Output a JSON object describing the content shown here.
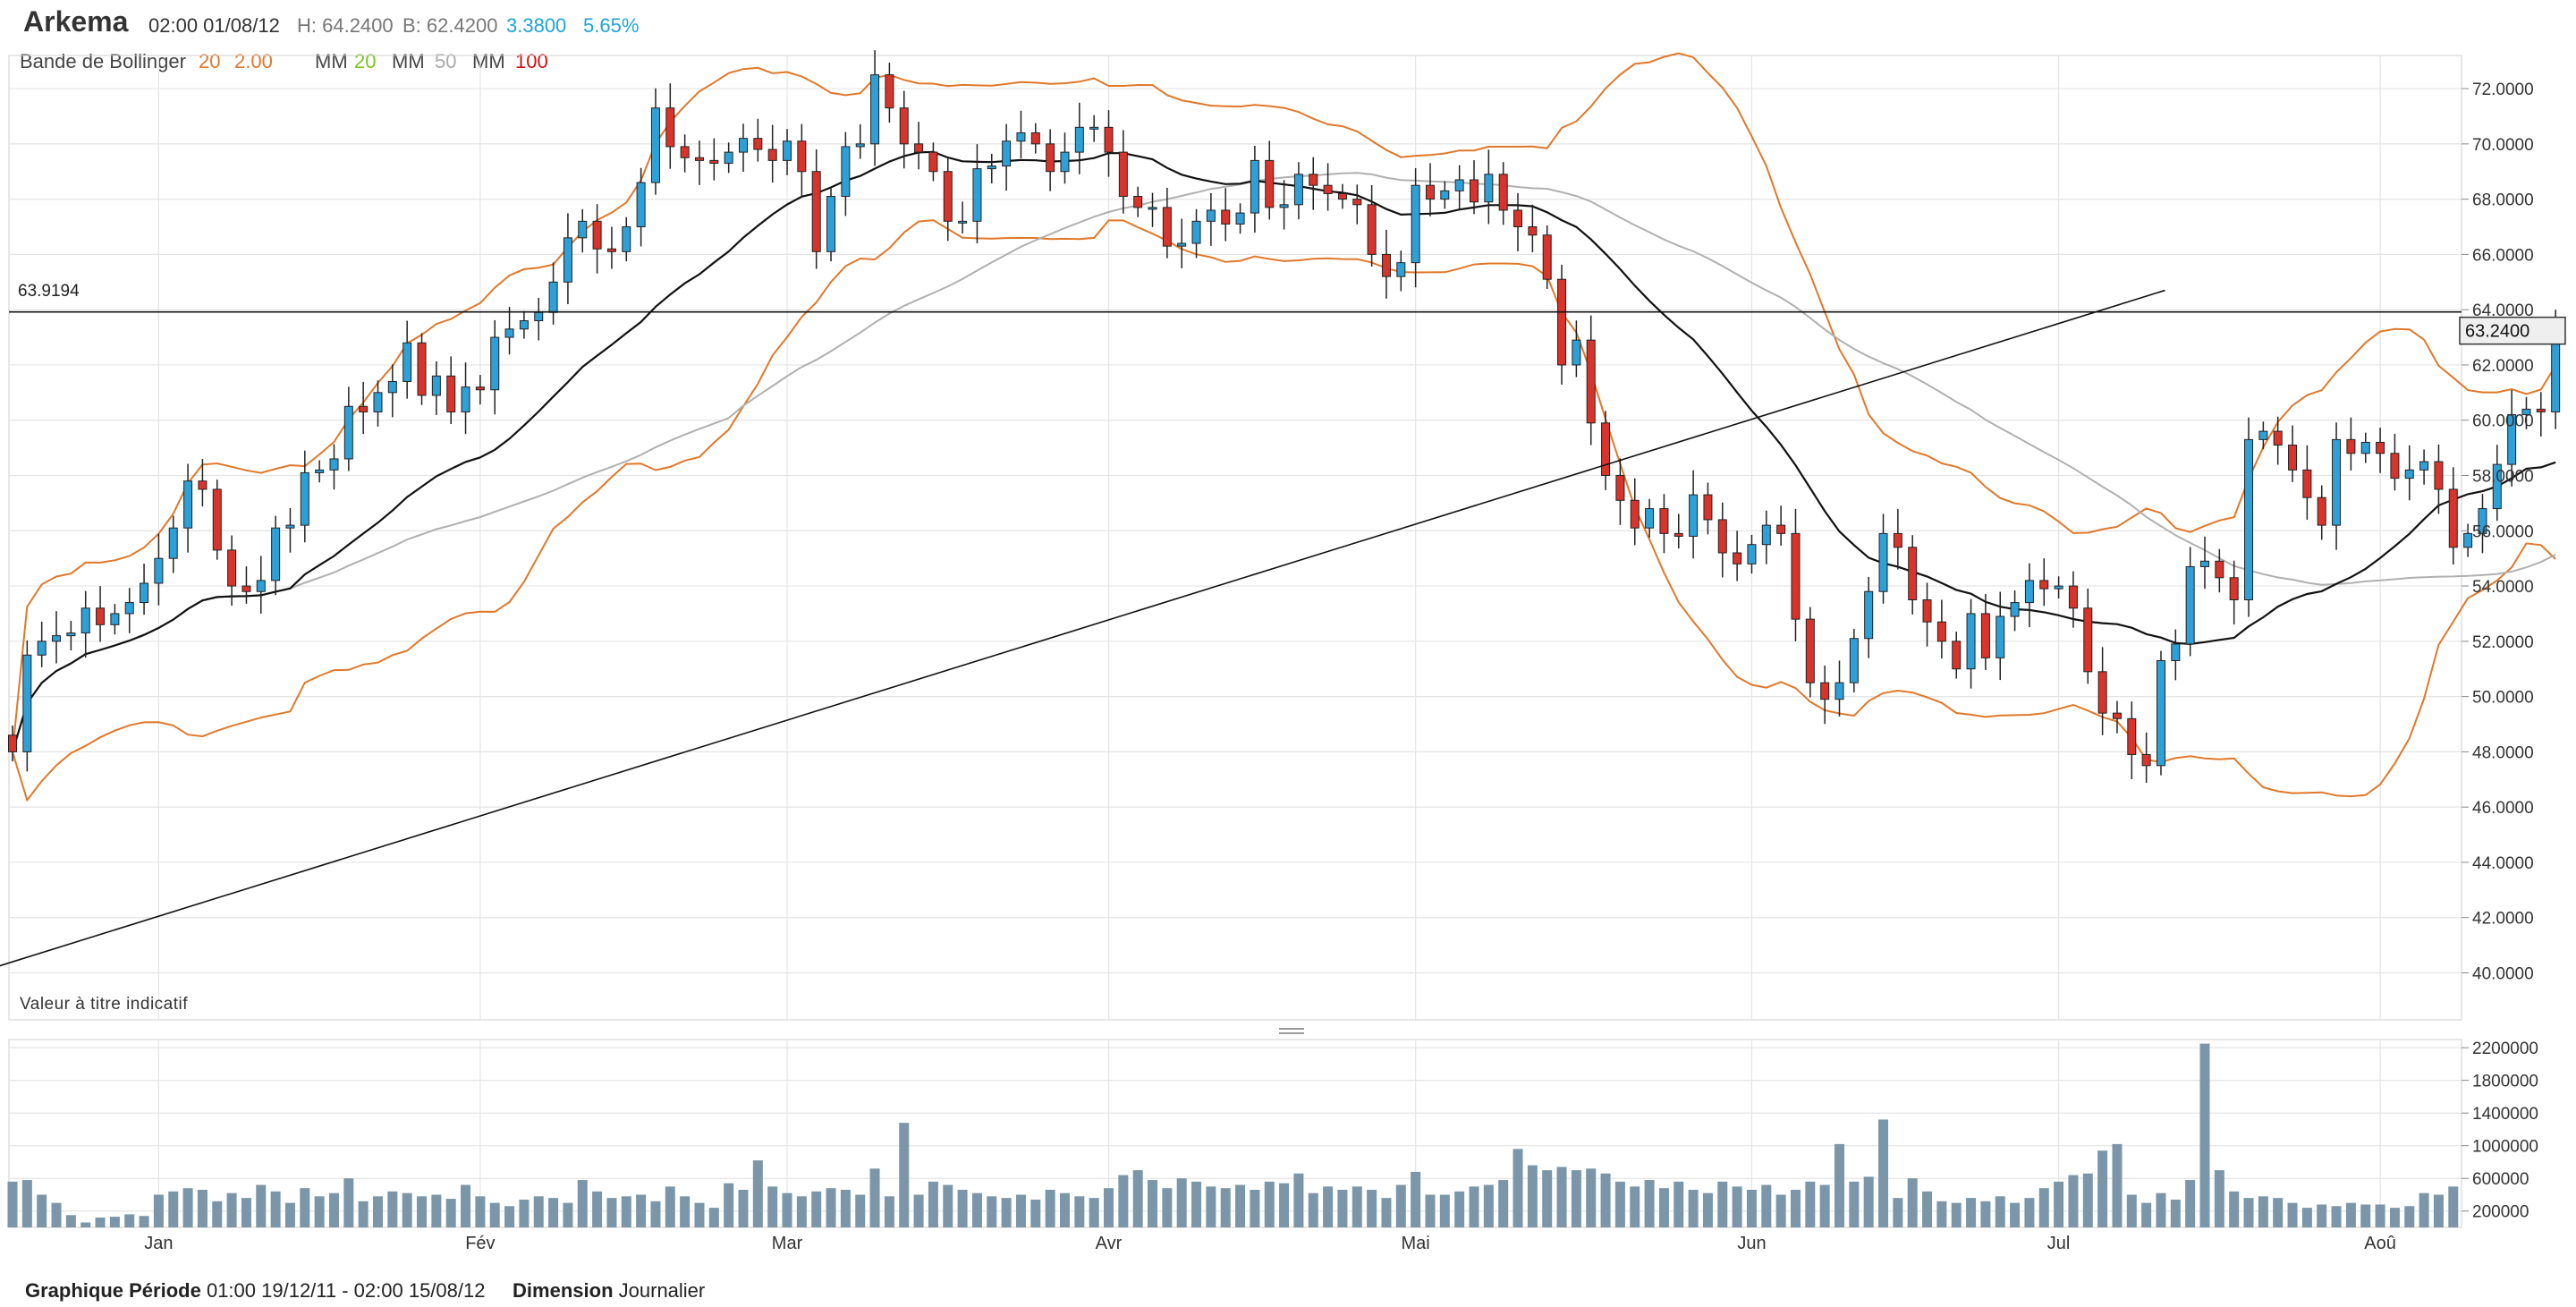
{
  "header": {
    "title": "Arkema",
    "datetime": "02:00 01/08/12",
    "high": "H: 64.2400",
    "low": "B: 62.4200",
    "change": "3.3800",
    "change_pct": "5.65%"
  },
  "indicators": {
    "bollinger_label": "Bande de Bollinger",
    "bollinger_period": "20",
    "bollinger_dev": "2.00",
    "ma_label": "MM",
    "ma1": "20",
    "ma2": "50",
    "ma3": "100"
  },
  "annotations": {
    "ref_line_label": "63.9194",
    "last_price_label": "63.2400",
    "disclaimer": "Valeur à titre indicatif"
  },
  "footer": {
    "period_label": "Graphique Période",
    "period_value": "01:00 19/12/11 - 02:00 15/08/12",
    "dimension_label": "Dimension",
    "dimension_value": "Journalier"
  },
  "colors": {
    "up": "#2ea0d8",
    "down": "#d9342b",
    "bollinger": "#e0782a",
    "ma20": "#111111",
    "ma50": "#b0b0b0",
    "volume": "#7b96a8",
    "grid": "#e4e4e4",
    "change": "#1fa3d6",
    "ma20_label": "#7cc21f",
    "ma100_label": "#cc1111"
  },
  "chart_data": [
    {
      "type": "candlestick",
      "title": "Arkema",
      "ylim": [
        38.3,
        73.2
      ],
      "y_ticks": [
        "72.0000",
        "70.0000",
        "68.0000",
        "66.0000",
        "64.0000",
        "62.0000",
        "60.0000",
        "58.0000",
        "56.0000",
        "54.0000",
        "52.0000",
        "50.0000",
        "48.0000",
        "46.0000",
        "44.0000",
        "42.0000",
        "40.0000"
      ],
      "x_range": [
        "19/12/11",
        "15/08/12"
      ],
      "x_ticks": [
        {
          "label": "Jan",
          "date": "02/01/12"
        },
        {
          "label": "Fév",
          "date": "01/02/12"
        },
        {
          "label": "Mar",
          "date": "01/03/12"
        },
        {
          "label": "Avr",
          "date": "02/04/12"
        },
        {
          "label": "Mai",
          "date": "01/05/12"
        },
        {
          "label": "Jun",
          "date": "01/06/12"
        },
        {
          "label": "Jul",
          "date": "02/07/12"
        },
        {
          "label": "Aoû",
          "date": "01/08/12"
        }
      ],
      "ref_line": 63.9194,
      "last_price": 63.24,
      "trendline": [
        [
          40.0,
          47.0
        ],
        [
          140.0,
          63.5
        ]
      ],
      "closes": [
        48.0,
        51.5,
        52.0,
        52.2,
        52.3,
        53.2,
        52.6,
        53.0,
        53.4,
        54.1,
        55.0,
        56.1,
        57.8,
        57.5,
        55.3,
        54.0,
        53.8,
        54.2,
        56.1,
        56.2,
        58.1,
        58.2,
        58.6,
        60.5,
        60.3,
        61.0,
        61.4,
        62.8,
        60.9,
        61.6,
        60.3,
        61.2,
        61.1,
        63.0,
        63.3,
        63.6,
        63.9,
        65.0,
        66.6,
        67.2,
        66.2,
        66.1,
        67.0,
        68.6,
        71.3,
        69.9,
        69.5,
        69.4,
        69.3,
        69.7,
        70.2,
        69.8,
        69.4,
        70.1,
        69.0,
        66.1,
        68.1,
        69.9,
        70.0,
        72.5,
        71.3,
        70.0,
        69.7,
        69.0,
        67.2,
        67.2,
        69.1,
        69.2,
        70.1,
        70.4,
        70.0,
        69.0,
        69.7,
        70.6,
        70.6,
        69.7,
        68.1,
        67.7,
        67.7,
        66.3,
        66.4,
        67.2,
        67.6,
        67.1,
        67.5,
        69.4,
        67.7,
        67.8,
        68.9,
        68.5,
        68.2,
        68.0,
        67.8,
        66.0,
        65.2,
        65.7,
        68.5,
        68.0,
        68.3,
        68.7,
        67.9,
        68.9,
        67.6,
        67.0,
        66.7,
        65.1,
        62.0,
        62.9,
        59.9,
        58.0,
        57.1,
        56.1,
        56.8,
        55.9,
        55.8,
        57.3,
        56.4,
        55.2,
        54.8,
        55.5,
        56.2,
        55.9,
        52.8,
        50.5,
        49.9,
        50.5,
        52.1,
        53.8,
        55.9,
        55.4,
        53.5,
        52.7,
        52.0,
        51.0,
        53.0,
        51.4,
        52.9,
        53.4,
        54.2,
        53.9,
        54.0,
        53.2,
        50.9,
        49.4,
        49.2,
        47.9,
        47.5,
        51.3,
        51.9,
        54.7,
        54.9,
        54.3,
        53.5,
        59.3,
        59.6,
        59.1,
        58.2,
        57.2,
        56.2,
        59.3,
        58.8,
        59.2,
        58.8,
        57.9,
        58.2,
        58.5,
        57.5,
        55.4,
        55.9,
        56.8,
        58.4,
        60.2,
        60.4,
        60.3,
        63.2
      ],
      "opens": [
        48.6,
        48.0,
        51.5,
        52.0,
        52.2,
        52.3,
        53.2,
        52.6,
        53.0,
        53.4,
        54.1,
        55.0,
        56.1,
        57.8,
        57.5,
        55.3,
        54.0,
        53.8,
        54.2,
        56.1,
        56.2,
        58.1,
        58.2,
        58.6,
        60.5,
        60.3,
        61.0,
        61.4,
        62.8,
        60.9,
        61.6,
        60.3,
        61.2,
        61.1,
        63.0,
        63.3,
        63.6,
        63.9,
        65.0,
        66.6,
        67.2,
        66.2,
        66.1,
        67.0,
        68.6,
        71.3,
        69.9,
        69.5,
        69.4,
        69.3,
        69.7,
        70.2,
        69.8,
        69.4,
        70.1,
        69.0,
        66.1,
        68.1,
        69.9,
        70.0,
        72.5,
        71.3,
        70.0,
        69.7,
        69.0,
        67.2,
        67.2,
        69.1,
        69.2,
        70.1,
        70.4,
        70.0,
        69.0,
        69.7,
        70.6,
        70.6,
        69.7,
        68.1,
        67.7,
        67.7,
        66.3,
        66.4,
        67.2,
        67.6,
        67.1,
        67.5,
        69.4,
        67.7,
        67.8,
        68.9,
        68.5,
        68.2,
        68.0,
        67.8,
        66.0,
        65.2,
        65.7,
        68.5,
        68.0,
        68.3,
        68.7,
        67.9,
        68.9,
        67.6,
        67.0,
        66.7,
        65.1,
        62.0,
        62.9,
        59.9,
        58.0,
        57.1,
        56.1,
        56.8,
        55.9,
        55.8,
        57.3,
        56.4,
        55.2,
        54.8,
        55.5,
        56.2,
        55.9,
        52.8,
        50.5,
        49.9,
        50.5,
        52.1,
        53.8,
        55.9,
        55.4,
        53.5,
        52.7,
        52.0,
        51.0,
        53.0,
        51.4,
        52.9,
        53.4,
        54.2,
        53.9,
        54.0,
        53.2,
        50.9,
        49.4,
        49.2,
        47.9,
        47.5,
        51.3,
        51.9,
        54.7,
        54.9,
        54.3,
        53.5,
        59.3,
        59.6,
        59.1,
        58.2,
        57.2,
        56.2,
        59.3,
        58.8,
        59.2,
        58.8,
        57.9,
        58.2,
        58.5,
        57.5,
        55.4,
        55.9,
        56.8,
        58.4,
        60.2,
        60.4,
        60.3
      ]
    },
    {
      "type": "bar",
      "title": "Volume",
      "y_ticks": [
        "2200000",
        "1800000",
        "1400000",
        "1000000",
        "600000",
        "200000"
      ],
      "ylim": [
        0,
        2300000
      ],
      "values": [
        560000,
        580000,
        400000,
        300000,
        150000,
        60000,
        120000,
        130000,
        160000,
        140000,
        400000,
        440000,
        480000,
        460000,
        320000,
        420000,
        360000,
        520000,
        440000,
        300000,
        480000,
        380000,
        420000,
        600000,
        320000,
        380000,
        440000,
        420000,
        380000,
        400000,
        350000,
        520000,
        380000,
        300000,
        260000,
        340000,
        380000,
        360000,
        300000,
        580000,
        440000,
        360000,
        380000,
        400000,
        320000,
        500000,
        380000,
        300000,
        240000,
        540000,
        460000,
        820000,
        500000,
        420000,
        380000,
        440000,
        480000,
        460000,
        400000,
        720000,
        380000,
        1280000,
        400000,
        560000,
        520000,
        460000,
        420000,
        380000,
        360000,
        400000,
        340000,
        460000,
        420000,
        380000,
        360000,
        480000,
        640000,
        700000,
        580000,
        480000,
        600000,
        560000,
        500000,
        480000,
        520000,
        460000,
        560000,
        540000,
        660000,
        420000,
        500000,
        460000,
        500000,
        460000,
        360000,
        520000,
        680000,
        400000,
        400000,
        440000,
        500000,
        520000,
        580000,
        960000,
        760000,
        700000,
        740000,
        700000,
        720000,
        660000,
        560000,
        500000,
        580000,
        480000,
        560000,
        460000,
        420000,
        560000,
        500000,
        460000,
        520000,
        400000,
        460000,
        560000,
        520000,
        1020000,
        560000,
        620000,
        1320000,
        360000,
        600000,
        440000,
        320000,
        300000,
        360000,
        320000,
        380000,
        300000,
        360000,
        480000,
        560000,
        640000,
        660000,
        940000,
        1020000,
        400000,
        300000,
        420000,
        340000,
        580000,
        2250000,
        700000,
        440000,
        360000,
        380000,
        360000,
        300000,
        240000,
        280000,
        260000,
        300000,
        280000,
        280000,
        240000,
        260000,
        420000,
        400000,
        500000
      ],
      "color": "#7b96a8"
    }
  ]
}
